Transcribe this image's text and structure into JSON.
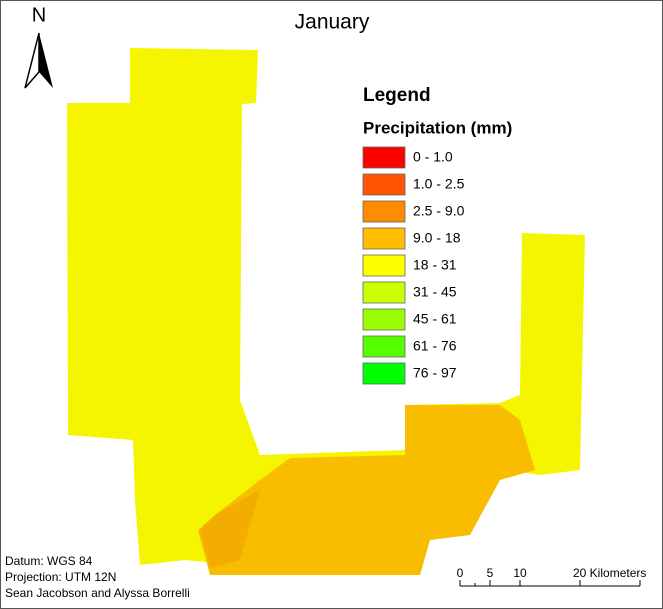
{
  "map": {
    "title": "January",
    "north_label": "N",
    "legend": {
      "heading": "Legend",
      "subheading": "Precipitation (mm)",
      "items": [
        {
          "label": "0 - 1.0",
          "color": "#ff0000"
        },
        {
          "label": "1.0 - 2.5",
          "color": "#ff5500"
        },
        {
          "label": "2.5 - 9.0",
          "color": "#ff8c00"
        },
        {
          "label": "9.0 - 18",
          "color": "#ffbf00"
        },
        {
          "label": "18 - 31",
          "color": "#ffff00"
        },
        {
          "label": "31 - 45",
          "color": "#ccff00"
        },
        {
          "label": "45 - 61",
          "color": "#99ff00"
        },
        {
          "label": "61 - 76",
          "color": "#55ff00"
        },
        {
          "label": "76 - 97",
          "color": "#00ff00"
        }
      ]
    },
    "credits": [
      "Datum: WGS 84",
      "Projection: UTM 12N",
      "Sean Jacobson and Alyssa Borrelli"
    ],
    "scale_labels": [
      "0",
      "5",
      "10",
      "20 Kilometers"
    ]
  }
}
